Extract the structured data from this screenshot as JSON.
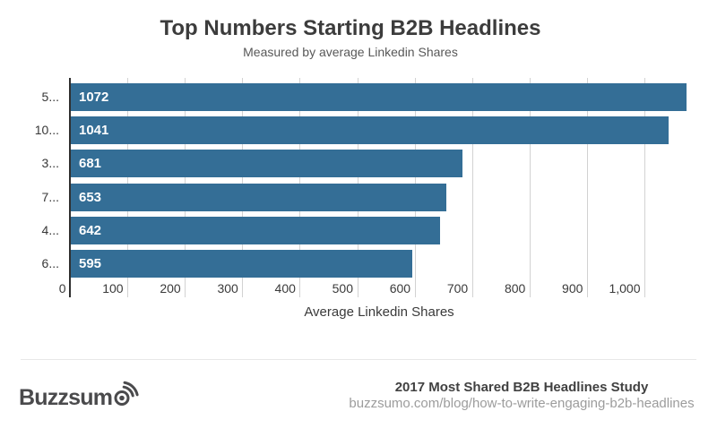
{
  "title": "Top Numbers Starting B2B Headlines",
  "subtitle": "Measured by average Linkedin Shares",
  "chart_data": {
    "type": "bar",
    "orientation": "horizontal",
    "categories": [
      "5...",
      "10...",
      "3...",
      "7...",
      "4...",
      "6..."
    ],
    "values": [
      1072,
      1041,
      681,
      653,
      642,
      595
    ],
    "value_labels": [
      "1072",
      "1041",
      "681",
      "653",
      "642",
      "595"
    ],
    "title": "Top Numbers Starting B2B Headlines",
    "subtitle": "Measured by average Linkedin Shares",
    "xlabel": "Average Linkedin Shares",
    "ylabel": "",
    "x_tick_labels": [
      "0",
      "100",
      "200",
      "300",
      "400",
      "500",
      "600",
      "700",
      "800",
      "900",
      "1,000"
    ],
    "x_tick_values": [
      0,
      100,
      200,
      300,
      400,
      500,
      600,
      700,
      800,
      900,
      1000
    ],
    "xlim": [
      0,
      1090
    ],
    "grid": "vertical-gridlines",
    "legend": "none",
    "bar_color": "#346e96",
    "value_label_color": "#ffffff"
  },
  "colors": {
    "bar": "#346e96",
    "axis_line": "#2f2f2f",
    "gridline": "#d2d2d2",
    "title": "#3c3c3c",
    "subtitle": "#585858",
    "footer_url": "#9c9c9c",
    "logo": "#4a4a4c"
  },
  "footer": {
    "logo_text": "Buzzsum",
    "logo_icon": "sonar-waves-icon",
    "study_title": "2017 Most Shared B2B Headlines Study",
    "study_url": "buzzsumo.com/blog/how-to-write-engaging-b2b-headlines"
  }
}
